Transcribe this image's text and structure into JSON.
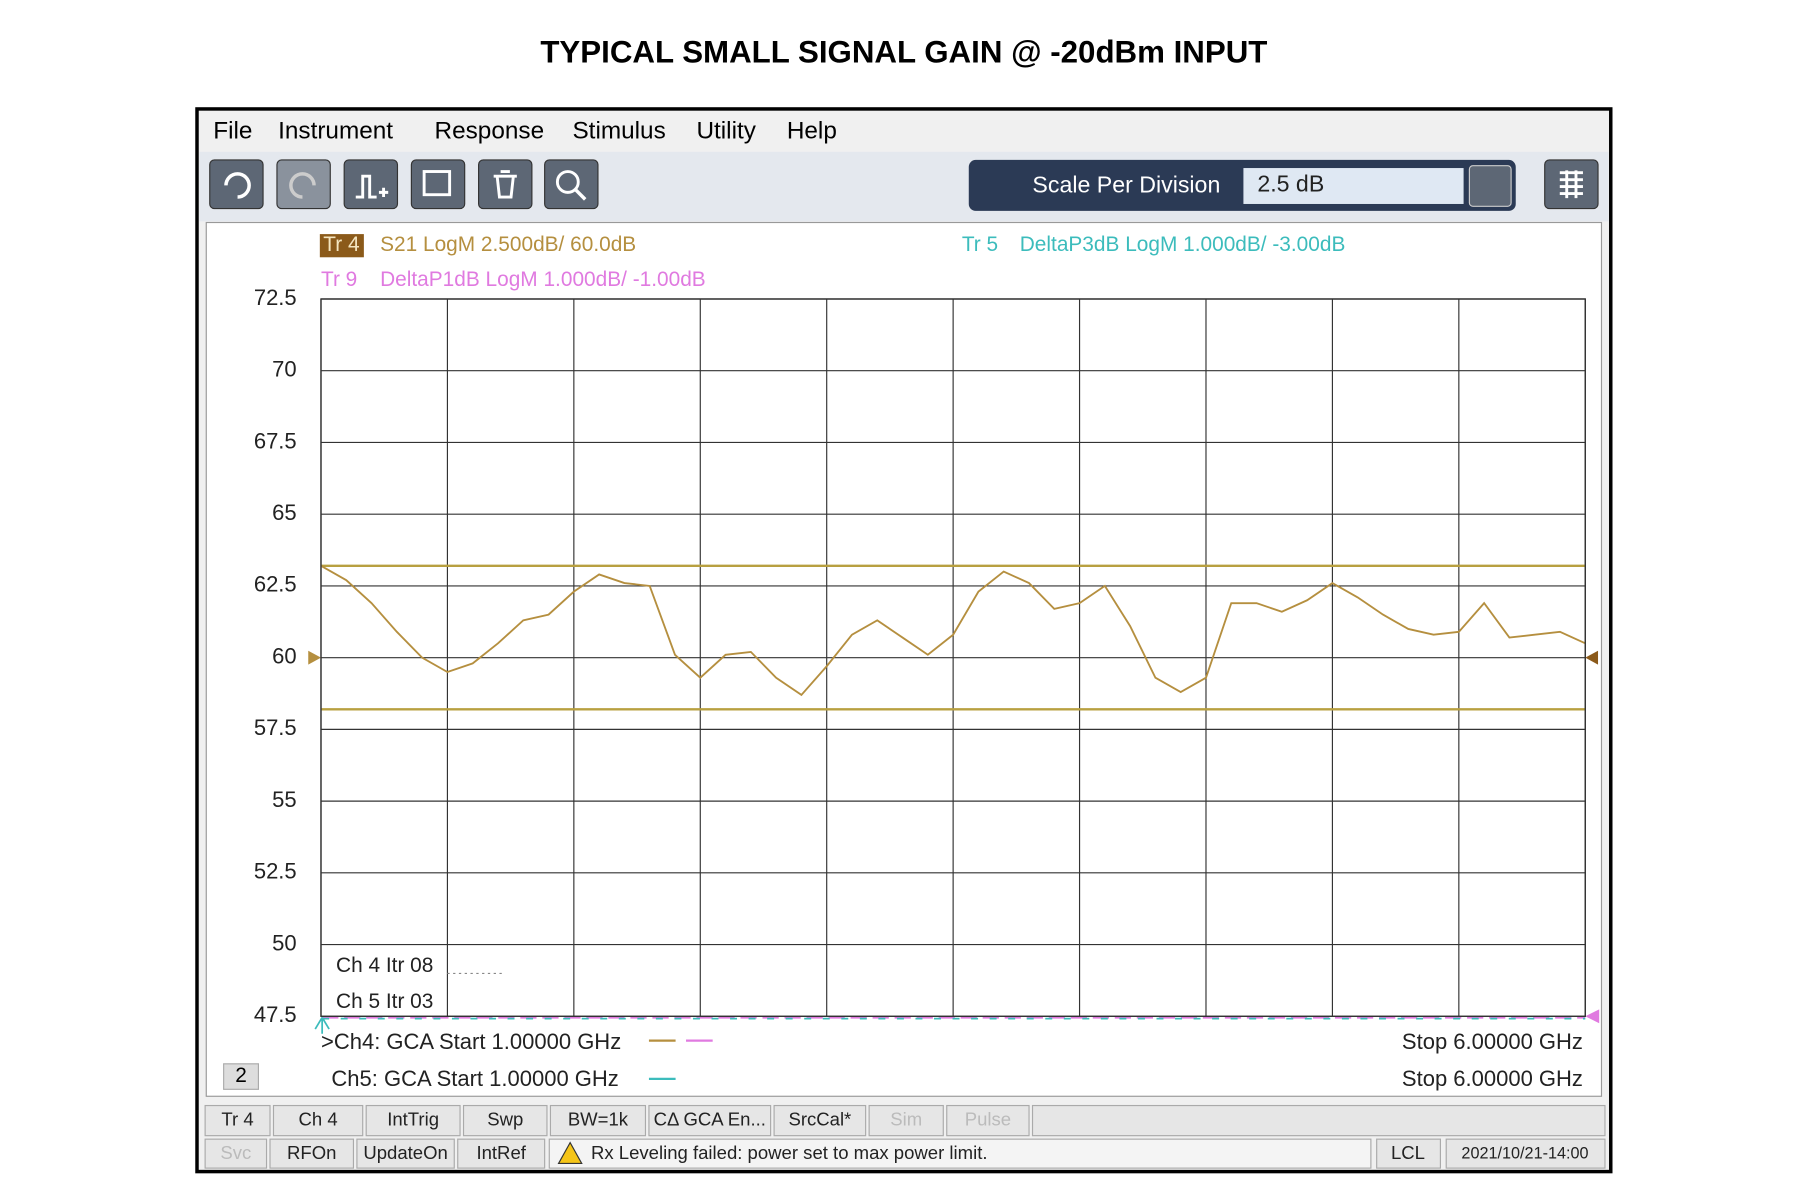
{
  "title": "TYPICAL SMALL SIGNAL GAIN @ -20dBm INPUT",
  "menu": [
    "File",
    "Instrument",
    "Response",
    "Stimulus",
    "Utility",
    "Help"
  ],
  "scale_label": "Scale Per Division",
  "scale_value": "2.5 dB",
  "traces": [
    {
      "tag": "Tr 4",
      "text": "S21 LogM 2.500dB/ 60.0dB"
    },
    {
      "tag": "Tr 5",
      "text": "DeltaP3dB LogM 1.000dB/ -3.00dB"
    },
    {
      "tag": "Tr 9",
      "text": "DeltaP1dB LogM 1.000dB/ -1.00dB"
    }
  ],
  "iterations": [
    "Ch 4  Itr 08",
    "Ch 5  Itr 03"
  ],
  "channels": [
    {
      "start": ">Ch4: GCA  Start  1.00000 GHz",
      "stop": "Stop  6.00000 GHz"
    },
    {
      "start": "Ch5: GCA  Start  1.00000 GHz",
      "stop": "Stop  6.00000 GHz"
    }
  ],
  "window_number": "2",
  "softkeys": [
    "Tr 4",
    "Ch 4",
    "IntTrig",
    "Swp",
    "BW=1k",
    "CΔ GCA En...",
    "SrcCal*",
    "Sim",
    "Pulse"
  ],
  "status": [
    "Svc",
    "RFOn",
    "UpdateOn",
    "IntRef"
  ],
  "message": "Rx Leveling failed: power set to max power limit.",
  "mode": "LCL",
  "timestamp": "2021/10/21-14:00",
  "chart_data": {
    "type": "line",
    "xlim": [
      1,
      6
    ],
    "ylim": [
      47.5,
      72.5
    ],
    "yticks": [
      72.5,
      70,
      67.5,
      65,
      62.5,
      60,
      57.5,
      55,
      52.5,
      50,
      47.5
    ],
    "grid": true,
    "reference_level": 60,
    "limit_lines": [
      63.2,
      58.2
    ],
    "limit_color": "#b8a040",
    "x": [
      1.0,
      1.1,
      1.2,
      1.3,
      1.4,
      1.5,
      1.6,
      1.7,
      1.8,
      1.9,
      2.0,
      2.1,
      2.2,
      2.3,
      2.4,
      2.5,
      2.6,
      2.7,
      2.8,
      2.9,
      3.0,
      3.1,
      3.2,
      3.3,
      3.4,
      3.5,
      3.6,
      3.7,
      3.8,
      3.9,
      4.0,
      4.1,
      4.2,
      4.3,
      4.4,
      4.5,
      4.6,
      4.7,
      4.8,
      4.9,
      5.0,
      5.1,
      5.2,
      5.3,
      5.4,
      5.5,
      5.6,
      5.7,
      5.8,
      5.9,
      6.0
    ],
    "series": [
      {
        "color": "#b58f3f",
        "values": [
          63.2,
          62.7,
          61.9,
          60.9,
          60.0,
          59.5,
          59.8,
          60.5,
          61.3,
          61.5,
          62.3,
          62.9,
          62.6,
          62.5,
          60.1,
          59.3,
          60.1,
          60.2,
          59.3,
          58.7,
          59.7,
          60.8,
          61.3,
          60.7,
          60.1,
          60.8,
          62.3,
          63.0,
          62.6,
          61.7,
          61.9,
          62.5,
          61.1,
          59.3,
          58.8,
          59.3,
          61.9,
          61.9,
          61.6,
          62.0,
          62.6,
          62.1,
          61.5,
          61.0,
          60.8,
          60.9,
          61.9,
          60.7,
          60.8,
          60.9,
          60.5
        ]
      }
    ]
  }
}
